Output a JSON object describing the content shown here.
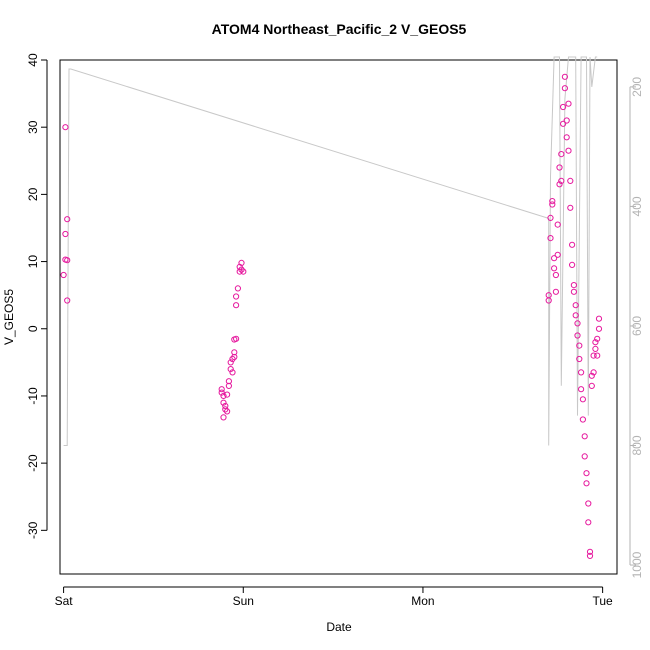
{
  "chart_data": {
    "type": "scatter",
    "title": "ATOM4 Northeast_Pacific_2 V_GEOS5",
    "xlabel": "Date",
    "ylabel": "V_GEOS5",
    "x_unit": "days from Sat 00:00",
    "xlim": [
      -0.02,
      3.08
    ],
    "ylim": [
      -36.5,
      40
    ],
    "y_ticks": [
      -30,
      -20,
      -10,
      0,
      10,
      20,
      30,
      40
    ],
    "x_ticks": [
      {
        "value": 0,
        "label": "Sat"
      },
      {
        "value": 1,
        "label": "Sun"
      },
      {
        "value": 2,
        "label": "Mon"
      },
      {
        "value": 3,
        "label": "Tue"
      }
    ],
    "right_axis": {
      "ylim": [
        1015,
        155
      ],
      "ticks": [
        200,
        400,
        600,
        800,
        1000
      ],
      "color": "#b3b3b3"
    },
    "grid": false,
    "legend": "none",
    "series": [
      {
        "kind": "points",
        "color": "#e6199e",
        "points": [
          [
            0.01,
            30.0
          ],
          [
            0.02,
            16.3
          ],
          [
            0.01,
            14.1
          ],
          [
            0.01,
            10.3
          ],
          [
            0.02,
            10.2
          ],
          [
            0.0,
            8.0
          ],
          [
            0.02,
            4.2
          ],
          [
            0.88,
            -9.0
          ],
          [
            0.88,
            -9.5
          ],
          [
            0.89,
            -10.0
          ],
          [
            0.89,
            -11.0
          ],
          [
            0.9,
            -11.5
          ],
          [
            0.9,
            -12.0
          ],
          [
            0.91,
            -12.3
          ],
          [
            0.89,
            -13.2
          ],
          [
            0.91,
            -9.8
          ],
          [
            0.92,
            -8.5
          ],
          [
            0.92,
            -7.8
          ],
          [
            0.93,
            -6.0
          ],
          [
            0.93,
            -5.0
          ],
          [
            0.94,
            -4.5
          ],
          [
            0.95,
            -3.5
          ],
          [
            0.95,
            -1.6
          ],
          [
            0.96,
            -1.5
          ],
          [
            0.94,
            -6.5
          ],
          [
            0.95,
            -4.2
          ],
          [
            0.96,
            3.5
          ],
          [
            0.96,
            4.8
          ],
          [
            0.97,
            6.0
          ],
          [
            0.98,
            8.5
          ],
          [
            0.98,
            9.2
          ],
          [
            0.99,
            9.8
          ],
          [
            0.99,
            8.8
          ],
          [
            1.0,
            8.5
          ],
          [
            2.7,
            4.2
          ],
          [
            2.7,
            5.0
          ],
          [
            2.71,
            13.5
          ],
          [
            2.71,
            16.5
          ],
          [
            2.72,
            18.5
          ],
          [
            2.72,
            19.0
          ],
          [
            2.73,
            10.5
          ],
          [
            2.73,
            9.0
          ],
          [
            2.74,
            5.5
          ],
          [
            2.74,
            8.0
          ],
          [
            2.75,
            11.0
          ],
          [
            2.75,
            15.5
          ],
          [
            2.76,
            21.5
          ],
          [
            2.76,
            24.0
          ],
          [
            2.77,
            22.0
          ],
          [
            2.77,
            26.0
          ],
          [
            2.78,
            30.5
          ],
          [
            2.78,
            33.0
          ],
          [
            2.79,
            35.8
          ],
          [
            2.79,
            37.5
          ],
          [
            2.8,
            31.0
          ],
          [
            2.8,
            28.5
          ],
          [
            2.81,
            33.5
          ],
          [
            2.81,
            26.5
          ],
          [
            2.82,
            22.0
          ],
          [
            2.82,
            18.0
          ],
          [
            2.83,
            12.5
          ],
          [
            2.83,
            9.5
          ],
          [
            2.84,
            6.5
          ],
          [
            2.84,
            5.5
          ],
          [
            2.85,
            3.5
          ],
          [
            2.85,
            2.0
          ],
          [
            2.86,
            0.8
          ],
          [
            2.86,
            -1.0
          ],
          [
            2.87,
            -2.5
          ],
          [
            2.87,
            -4.5
          ],
          [
            2.88,
            -6.5
          ],
          [
            2.88,
            -9.0
          ],
          [
            2.89,
            -10.5
          ],
          [
            2.89,
            -13.5
          ],
          [
            2.9,
            -16.0
          ],
          [
            2.9,
            -19.0
          ],
          [
            2.91,
            -21.5
          ],
          [
            2.91,
            -23.0
          ],
          [
            2.92,
            -26.0
          ],
          [
            2.92,
            -28.8
          ],
          [
            2.93,
            -33.2
          ],
          [
            2.93,
            -33.8
          ],
          [
            2.94,
            -8.5
          ],
          [
            2.94,
            -7.0
          ],
          [
            2.95,
            -6.5
          ],
          [
            2.95,
            -4.0
          ],
          [
            2.96,
            -3.0
          ],
          [
            2.96,
            -2.0
          ],
          [
            2.97,
            -4.0
          ],
          [
            2.97,
            -1.5
          ],
          [
            2.98,
            0.0
          ],
          [
            2.98,
            1.5
          ]
        ]
      },
      {
        "kind": "line",
        "axis": "right",
        "color": "#c8c8c8",
        "points": [
          [
            0.0,
            800
          ],
          [
            0.02,
            800
          ],
          [
            0.03,
            170
          ],
          [
            0.04,
            170
          ],
          [
            2.7,
            420
          ],
          [
            2.7,
            800
          ],
          [
            2.71,
            350
          ],
          [
            2.73,
            150
          ],
          [
            2.76,
            150
          ],
          [
            2.77,
            700
          ],
          [
            2.79,
            220
          ],
          [
            2.81,
            150
          ],
          [
            2.85,
            150
          ],
          [
            2.86,
            750
          ],
          [
            2.88,
            150
          ],
          [
            2.9,
            150
          ],
          [
            2.91,
            150
          ],
          [
            2.92,
            750
          ],
          [
            2.93,
            150
          ],
          [
            2.94,
            200
          ],
          [
            2.96,
            150
          ],
          [
            2.97,
            150
          ]
        ]
      }
    ]
  }
}
